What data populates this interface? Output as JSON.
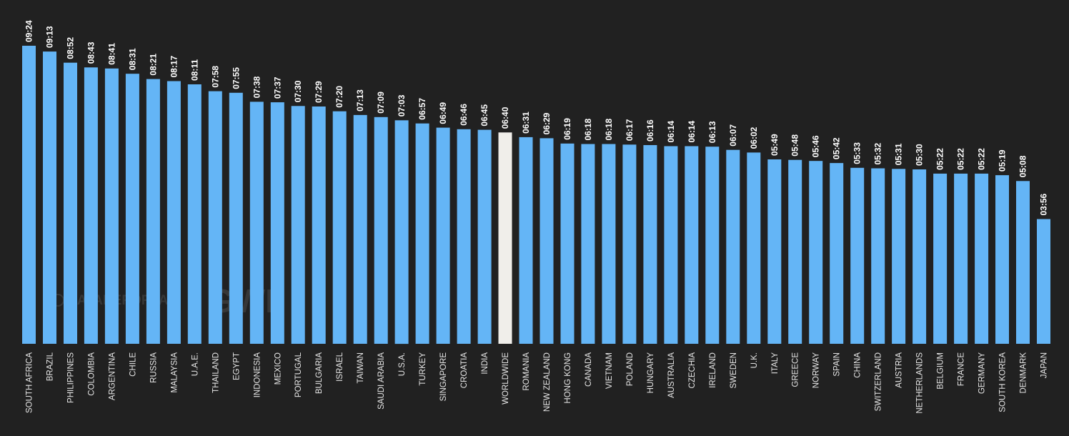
{
  "chart_data": {
    "type": "bar",
    "title": "",
    "xlabel": "",
    "ylabel": "",
    "unit": "hh:mm",
    "ylim": [
      0,
      570
    ],
    "grid": false,
    "highlight_category": "WORLDWIDE",
    "colors": {
      "background": "#212121",
      "bar": "#64b5f6",
      "highlight_bar": "#f0eeea",
      "label_text": "#ffffff",
      "category_text": "#e6e6e6",
      "watermark": "#4a4a4a"
    },
    "watermark": {
      "logo_text": "DATAREPORTAL",
      "brand_text": "GWI."
    },
    "categories": [
      "SOUTH AFRICA",
      "BRAZIL",
      "PHILIPPINES",
      "COLOMBIA",
      "ARGENTINA",
      "CHILE",
      "RUSSIA",
      "MALAYSIA",
      "U.A.E.",
      "THAILAND",
      "EGYPT",
      "INDONESIA",
      "MEXICO",
      "PORTUGAL",
      "BULGARIA",
      "ISRAEL",
      "TAIWAN",
      "SAUDI ARABIA",
      "U.S.A.",
      "TURKEY",
      "SINGAPORE",
      "CROATIA",
      "INDIA",
      "WORLDWIDE",
      "ROMANIA",
      "NEW ZEALAND",
      "HONG KONG",
      "CANADA",
      "VIETNAM",
      "POLAND",
      "HUNGARY",
      "AUSTRALIA",
      "CZECHIA",
      "IRELAND",
      "SWEDEN",
      "U.K.",
      "ITALY",
      "GREECE",
      "NORWAY",
      "SPAIN",
      "CHINA",
      "SWITZERLAND",
      "AUSTRIA",
      "NETHERLANDS",
      "BELGIUM",
      "FRANCE",
      "GERMANY",
      "SOUTH KOREA",
      "DENMARK",
      "JAPAN"
    ],
    "labels": [
      "09:24",
      "09:13",
      "08:52",
      "08:43",
      "08:41",
      "08:31",
      "08:21",
      "08:17",
      "08:11",
      "07:58",
      "07:55",
      "07:38",
      "07:37",
      "07:30",
      "07:29",
      "07:20",
      "07:13",
      "07:09",
      "07:03",
      "06:57",
      "06:49",
      "06:46",
      "06:45",
      "06:40",
      "06:31",
      "06:29",
      "06:19",
      "06:18",
      "06:18",
      "06:17",
      "06:16",
      "06:14",
      "06:14",
      "06:13",
      "06:07",
      "06:02",
      "05:49",
      "05:48",
      "05:46",
      "05:42",
      "05:33",
      "05:32",
      "05:31",
      "05:30",
      "05:22",
      "05:22",
      "05:22",
      "05:19",
      "05:08",
      "03:56"
    ],
    "values": [
      564,
      553,
      532,
      523,
      521,
      511,
      501,
      497,
      491,
      478,
      475,
      458,
      457,
      450,
      449,
      440,
      433,
      429,
      423,
      417,
      409,
      406,
      405,
      400,
      391,
      389,
      379,
      378,
      378,
      377,
      376,
      374,
      374,
      373,
      367,
      362,
      349,
      348,
      346,
      342,
      333,
      332,
      331,
      330,
      322,
      322,
      322,
      319,
      308,
      236
    ]
  }
}
